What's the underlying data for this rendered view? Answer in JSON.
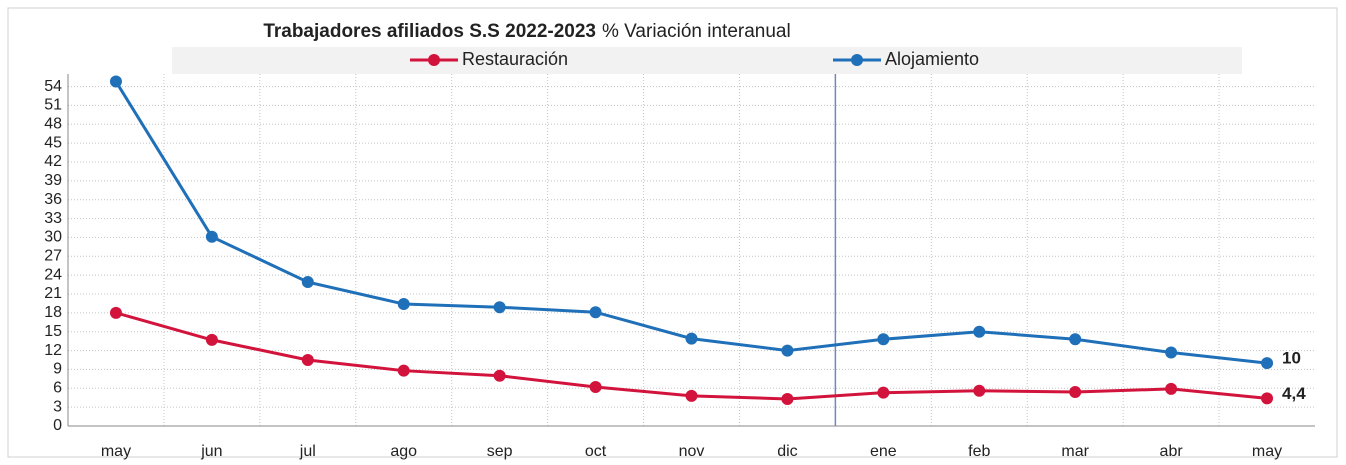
{
  "chart_data": {
    "type": "line",
    "title": "Trabajadores afiliados S.S 2022-2023",
    "subtitle": "% Variación interanual",
    "categories": [
      "may",
      "jun",
      "jul",
      "ago",
      "sep",
      "oct",
      "nov",
      "dic",
      "ene",
      "feb",
      "mar",
      "abr",
      "may"
    ],
    "series": [
      {
        "name": "Restauración",
        "color": "#d2143c",
        "label_color": "#b00020",
        "values": [
          18.0,
          13.7,
          10.5,
          8.8,
          8.0,
          6.2,
          4.8,
          4.3,
          5.3,
          5.6,
          5.4,
          5.9,
          4.4
        ],
        "value_labels": [
          null,
          null,
          null,
          null,
          null,
          null,
          null,
          null,
          null,
          null,
          null,
          null,
          "4,4"
        ]
      },
      {
        "name": "Alojamiento",
        "color": "#1f70b8",
        "label_color": "#1f70b8",
        "values": [
          54.8,
          30.1,
          22.9,
          19.4,
          18.9,
          18.1,
          13.9,
          12.0,
          13.8,
          15.0,
          13.8,
          11.7,
          10
        ],
        "value_labels": [
          null,
          null,
          null,
          null,
          null,
          null,
          null,
          null,
          null,
          null,
          null,
          null,
          "10"
        ]
      }
    ],
    "ylim": [
      0,
      56
    ],
    "yticks": [
      0,
      3,
      6,
      9,
      12,
      15,
      18,
      21,
      24,
      27,
      30,
      33,
      36,
      39,
      42,
      45,
      48,
      51,
      54
    ],
    "grid": true
  }
}
